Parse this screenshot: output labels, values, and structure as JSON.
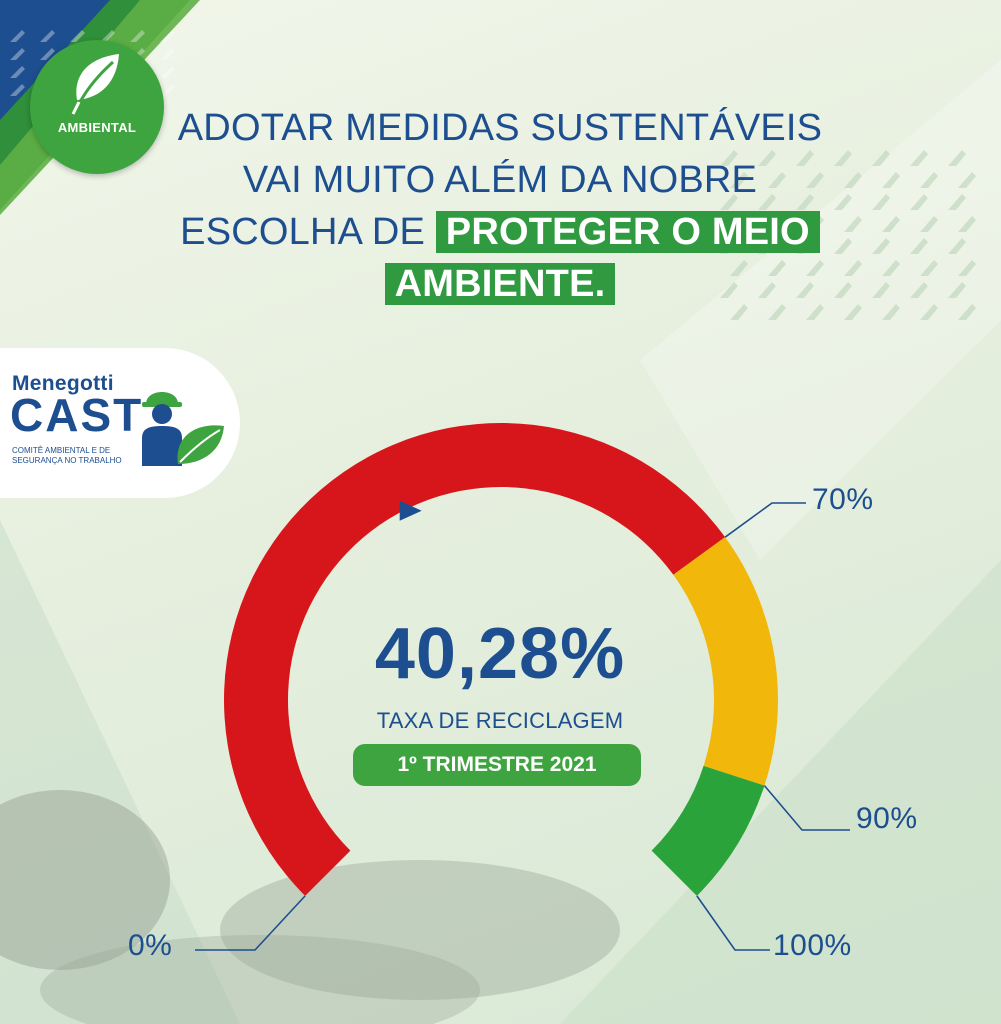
{
  "badge": {
    "label": "AMBIENTAL",
    "icon": "leaf-icon",
    "color": "#3ea43f"
  },
  "headline": {
    "line1": "ADOTAR MEDIDAS SUSTENTÁVEIS",
    "line2": "VAI MUITO ALÉM DA NOBRE",
    "line3_plain": "ESCOLHA DE ",
    "line3_highlight": "PROTEGER O MEIO",
    "line4_highlight": "AMBIENTE.",
    "text_color": "#1d4e8f",
    "highlight_color": "#2f9a3f"
  },
  "logo": {
    "brand_small": "Menegotti",
    "brand_big": "CAST",
    "tagline": "COMITÊ AMBIENTAL E DE SEGURANÇA NO TRABALHO",
    "icon": "worker-with-leaf-icon"
  },
  "gauge": {
    "value": 40.28,
    "value_label": "40,28%",
    "subtitle": "TAXA DE RECICLAGEM",
    "period": "1º TRIMESTRE 2021",
    "segments": [
      {
        "from": 0,
        "to": 70,
        "color": "#d7161c"
      },
      {
        "from": 70,
        "to": 90,
        "color": "#f1b80b"
      },
      {
        "from": 90,
        "to": 100,
        "color": "#2aa33b"
      }
    ],
    "ticks": [
      "0%",
      "70%",
      "90%",
      "100%"
    ],
    "marker_color": "#1d4e8f"
  }
}
